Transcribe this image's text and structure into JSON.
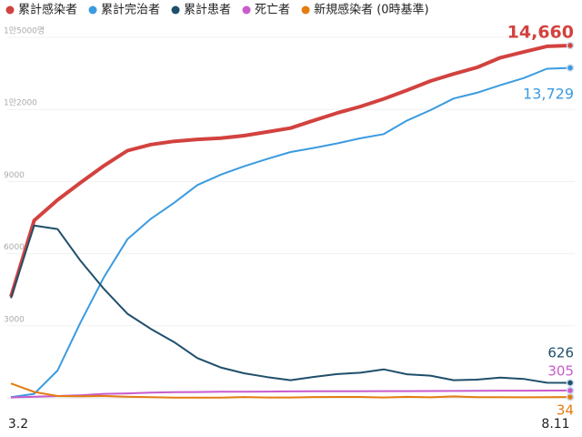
{
  "chart_data": {
    "type": "line",
    "categories": [
      "3.2",
      null,
      null,
      null,
      null,
      null,
      null,
      null,
      null,
      null,
      null,
      null,
      null,
      null,
      null,
      null,
      null,
      null,
      null,
      null,
      null,
      null,
      null,
      null,
      "8.11"
    ],
    "series": [
      {
        "name": "累計感染者",
        "color": "#d2423f",
        "values": [
          4212,
          7382,
          8236,
          8961,
          9661,
          10284,
          10537,
          10674,
          10752,
          10804,
          10909,
          11065,
          11225,
          11541,
          11852,
          12121,
          12438,
          12800,
          13181,
          13479,
          13745,
          14150,
          14389,
          14626,
          14660
        ],
        "value_labels": [
          null,
          null,
          null,
          null,
          null,
          null,
          null,
          null,
          null,
          null,
          null,
          null,
          null,
          null,
          null,
          null,
          null,
          null,
          null,
          null,
          null,
          null,
          null,
          null,
          "14,660"
        ]
      },
      {
        "name": "累計完治者",
        "color": "#3b9be0",
        "values": [
          30,
          166,
          1137,
          3166,
          5033,
          6598,
          7447,
          8114,
          8854,
          9283,
          9632,
          9938,
          10226,
          10398,
          10589,
          10800,
          10974,
          11537,
          11970,
          12456,
          12692,
          13007,
          13302,
          13692,
          13729
        ],
        "value_labels": [
          null,
          null,
          null,
          null,
          null,
          null,
          null,
          null,
          null,
          null,
          null,
          null,
          null,
          null,
          null,
          null,
          null,
          null,
          null,
          null,
          null,
          null,
          null,
          null,
          "13,729"
        ]
      },
      {
        "name": "累計患者",
        "color": "#1f4f6b",
        "values": [
          4150,
          7170,
          7024,
          5684,
          4523,
          3500,
          2873,
          2323,
          1654,
          1267,
          1021,
          864,
          736,
          870,
          990,
          1044,
          1184,
          981,
          924,
          734,
          759,
          844,
          786,
          629,
          626
        ]
      },
      {
        "name": "死亡者",
        "color": "#c95ccc",
        "values": [
          17,
          51,
          75,
          111,
          165,
          186,
          217,
          236,
          244,
          252,
          256,
          263,
          269,
          272,
          276,
          278,
          280,
          282,
          285,
          289,
          296,
          299,
          301,
          304,
          305
        ]
      },
      {
        "name": "新規感染者 (0時基準)",
        "color": "#e37d12",
        "values": [
          600,
          248,
          74,
          64,
          78,
          47,
          25,
          13,
          10,
          8,
          35,
          15,
          16,
          35,
          38,
          37,
          17,
          42,
          24,
          62,
          26,
          25,
          23,
          28,
          34
        ]
      }
    ],
    "ylim": [
      0,
      15000
    ],
    "yticks": [
      3000,
      6000,
      9000,
      {
        "value": 12000,
        "label": "1만2000"
      },
      {
        "value": 15000,
        "label": "1만5000명"
      }
    ],
    "grid": true
  }
}
